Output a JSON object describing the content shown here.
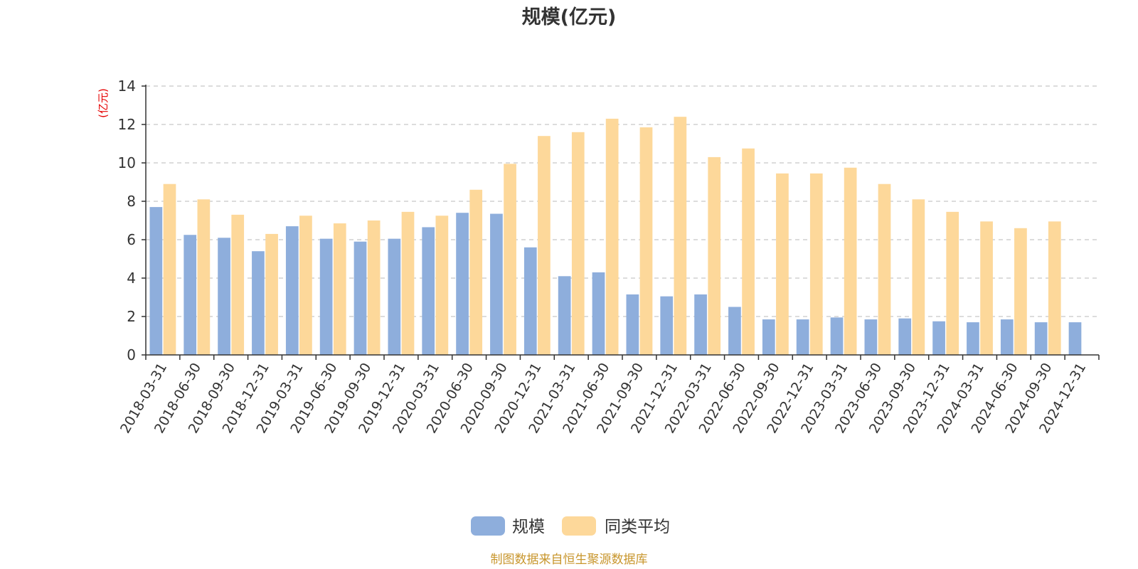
{
  "chart_data": {
    "type": "bar",
    "title": "规模(亿元)",
    "ylabel": "(亿元)",
    "xlabel": "",
    "ylim": [
      0,
      14
    ],
    "yticks": [
      0,
      2,
      4,
      6,
      8,
      10,
      12,
      14
    ],
    "grid": true,
    "legend_position": "bottom",
    "categories": [
      "2018-03-31",
      "2018-06-30",
      "2018-09-30",
      "2018-12-31",
      "2019-03-31",
      "2019-06-30",
      "2019-09-30",
      "2019-12-31",
      "2020-03-31",
      "2020-06-30",
      "2020-09-30",
      "2020-12-31",
      "2021-03-31",
      "2021-06-30",
      "2021-09-30",
      "2021-12-31",
      "2022-03-31",
      "2022-06-30",
      "2022-09-30",
      "2022-12-31",
      "2023-03-31",
      "2023-06-30",
      "2023-09-30",
      "2023-12-31",
      "2024-03-31",
      "2024-06-30",
      "2024-09-30",
      "2024-12-31"
    ],
    "series": [
      {
        "name": "规模",
        "color": "#8eaedc",
        "values": [
          7.7,
          6.25,
          6.1,
          5.4,
          6.7,
          6.05,
          5.9,
          6.05,
          6.65,
          7.4,
          7.35,
          5.6,
          4.1,
          4.3,
          3.15,
          3.05,
          3.15,
          2.5,
          1.85,
          1.85,
          1.95,
          1.85,
          1.9,
          1.75,
          1.7,
          1.85,
          1.7,
          1.7
        ]
      },
      {
        "name": "同类平均",
        "color": "#fdd89a",
        "values": [
          8.9,
          8.1,
          7.3,
          6.3,
          7.25,
          6.85,
          7.0,
          7.45,
          7.25,
          8.6,
          9.95,
          11.4,
          11.6,
          12.3,
          11.85,
          12.4,
          10.3,
          10.75,
          9.45,
          9.45,
          9.75,
          8.9,
          8.1,
          7.45,
          6.95,
          6.6,
          6.95,
          null
        ]
      }
    ],
    "source_note": "制图数据来自恒生聚源数据库"
  }
}
